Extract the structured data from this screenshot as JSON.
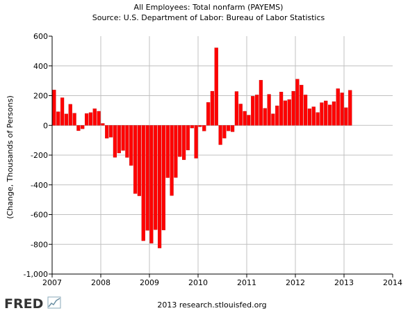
{
  "chart_data": {
    "type": "bar",
    "title": "All Employees: Total nonfarm (PAYEMS)",
    "subtitle": "Source: U.S. Department of Labor: Bureau of Labor Statistics",
    "xlabel": "",
    "ylabel": "(Change, Thousands of Persons)",
    "xlim": [
      2007,
      2014
    ],
    "ylim": [
      -1000,
      600
    ],
    "x_ticks": [
      "2007",
      "2008",
      "2009",
      "2010",
      "2011",
      "2012",
      "2013",
      "2014"
    ],
    "y_ticks": [
      "600",
      "400",
      "200",
      "0",
      "-200",
      "-400",
      "-600",
      "-800",
      "-1,000"
    ],
    "grid": true,
    "bar_color": "#ff0000",
    "start": "2007-01",
    "series": [
      {
        "values": [
          238,
          92,
          186,
          77,
          142,
          82,
          -36,
          -23,
          80,
          86,
          112,
          95,
          13,
          -87,
          -80,
          -215,
          -186,
          -169,
          -216,
          -270,
          -459,
          -474,
          -776,
          -706,
          -793,
          -702,
          -825,
          -704,
          -352,
          -472,
          -351,
          -210,
          -231,
          -166,
          -18,
          -221,
          -9,
          -38,
          155,
          230,
          522,
          -130,
          -86,
          -37,
          -43,
          228,
          144,
          95,
          69,
          196,
          205,
          304,
          115,
          209,
          78,
          132,
          225,
          166,
          174,
          230,
          311,
          271,
          205,
          112,
          125,
          87,
          153,
          165,
          138,
          160,
          247,
          219,
          119,
          236
        ]
      }
    ]
  },
  "footer": {
    "logo_text": "FRED",
    "source_text": "2013 research.stlouisfed.org"
  }
}
